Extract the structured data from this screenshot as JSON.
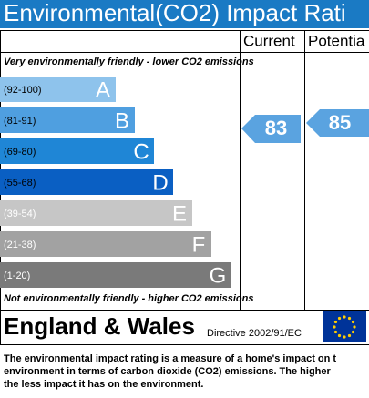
{
  "header": {
    "title": "Environmental(CO2) Impact Rati"
  },
  "columns": {
    "current": "Current",
    "potential": "Potentia"
  },
  "top_note": "Very environmentally friendly - lower CO2 emissions",
  "bottom_note": "Not environmentally friendly - higher CO2 emissions",
  "bands": [
    {
      "range": "(92-100)",
      "letter": "A",
      "color": "#8ec3ec"
    },
    {
      "range": "(81-91)",
      "letter": "B",
      "color": "#4f9fe0"
    },
    {
      "range": "(69-80)",
      "letter": "C",
      "color": "#1f86d6"
    },
    {
      "range": "(55-68)",
      "letter": "D",
      "color": "#0a5fc3"
    },
    {
      "range": "(39-54)",
      "letter": "E",
      "color": "#c6c6c6"
    },
    {
      "range": "(21-38)",
      "letter": "F",
      "color": "#a2a2a2"
    },
    {
      "range": "(1-20)",
      "letter": "G",
      "color": "#7a7a7a"
    }
  ],
  "ratings": {
    "current": 83,
    "potential": 85,
    "color": "#5aa3e0"
  },
  "footer": {
    "region": "England & Wales",
    "directive": "Directive 2002/91/EC"
  },
  "description": [
    "The environmental impact rating is a measure of a home's impact on t",
    "environment in terms of carbon dioxide (CO2) emissions. The higher",
    "the less impact it has on the environment."
  ]
}
